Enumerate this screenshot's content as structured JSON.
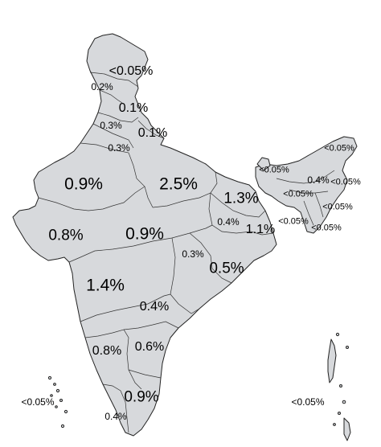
{
  "map": {
    "fill_color": "#d7d9dc",
    "border_color": "#222222",
    "labels": [
      {
        "id": "jammu-kashmir",
        "value": "<0.05%"
      },
      {
        "id": "himachal",
        "value": "0.2%"
      },
      {
        "id": "punjab",
        "value": "0.1%"
      },
      {
        "id": "haryana",
        "value": "0.3%"
      },
      {
        "id": "uttarakhand",
        "value": "0.1%"
      },
      {
        "id": "delhi",
        "value": "0.3%"
      },
      {
        "id": "rajasthan",
        "value": "0.9%"
      },
      {
        "id": "uttar-pradesh",
        "value": "2.5%"
      },
      {
        "id": "bihar",
        "value": "1.3%"
      },
      {
        "id": "jharkhand",
        "value": "0.4%"
      },
      {
        "id": "west-bengal",
        "value": "1.1%"
      },
      {
        "id": "sikkim",
        "value": "<0.05%"
      },
      {
        "id": "arunachal",
        "value": "<0.05%"
      },
      {
        "id": "assam",
        "value": "0.4%"
      },
      {
        "id": "meghalaya",
        "value": "<0.05%"
      },
      {
        "id": "nagaland",
        "value": "<0.05%"
      },
      {
        "id": "manipur",
        "value": "<0.05%"
      },
      {
        "id": "tripura",
        "value": "<0.05%"
      },
      {
        "id": "mizoram",
        "value": "<0.05%"
      },
      {
        "id": "gujarat",
        "value": "0.8%"
      },
      {
        "id": "madhya-pradesh",
        "value": "0.9%"
      },
      {
        "id": "chhattisgarh",
        "value": "0.3%"
      },
      {
        "id": "odisha",
        "value": "0.5%"
      },
      {
        "id": "maharashtra",
        "value": "1.4%"
      },
      {
        "id": "telangana",
        "value": "0.4%"
      },
      {
        "id": "karnataka",
        "value": "0.8%"
      },
      {
        "id": "andhra-pradesh",
        "value": "0.6%"
      },
      {
        "id": "tamil-nadu",
        "value": "0.9%"
      },
      {
        "id": "kerala",
        "value": "0.4%"
      },
      {
        "id": "lakshadweep",
        "value": "<0.05%"
      },
      {
        "id": "andaman-nicobar",
        "value": "<0.05%"
      }
    ]
  }
}
